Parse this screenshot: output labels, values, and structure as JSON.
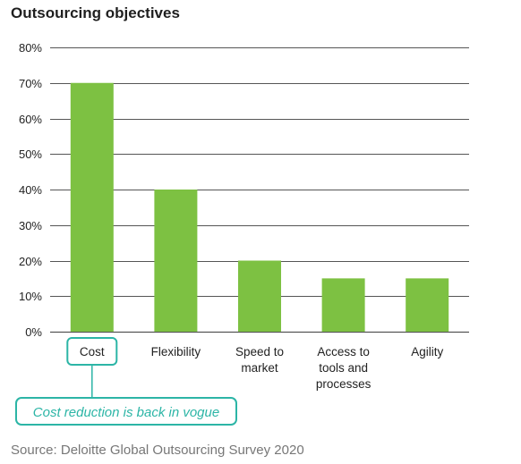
{
  "colors": {
    "bar": "#7dc142",
    "grid": "#555555",
    "accent": "#2cb5a6"
  },
  "chart_data": {
    "type": "bar",
    "title": "Outsourcing objectives",
    "categories": [
      [
        "Cost"
      ],
      [
        "Flexibility"
      ],
      [
        "Speed to",
        "market"
      ],
      [
        "Access to",
        "tools and",
        "processes"
      ],
      [
        "Agility"
      ]
    ],
    "values": [
      70,
      40,
      20,
      15,
      15
    ],
    "ylim": [
      0,
      80
    ],
    "yticks": [
      0,
      10,
      20,
      30,
      40,
      50,
      60,
      70,
      80
    ],
    "ytick_labels": [
      "0%",
      "10%",
      "20%",
      "30%",
      "40%",
      "50%",
      "60%",
      "70%",
      "80%"
    ],
    "grid": true,
    "annotation": {
      "text": "Cost reduction is back in vogue",
      "category_index": 0
    }
  },
  "source": "Source: Deloitte Global Outsourcing Survey 2020"
}
